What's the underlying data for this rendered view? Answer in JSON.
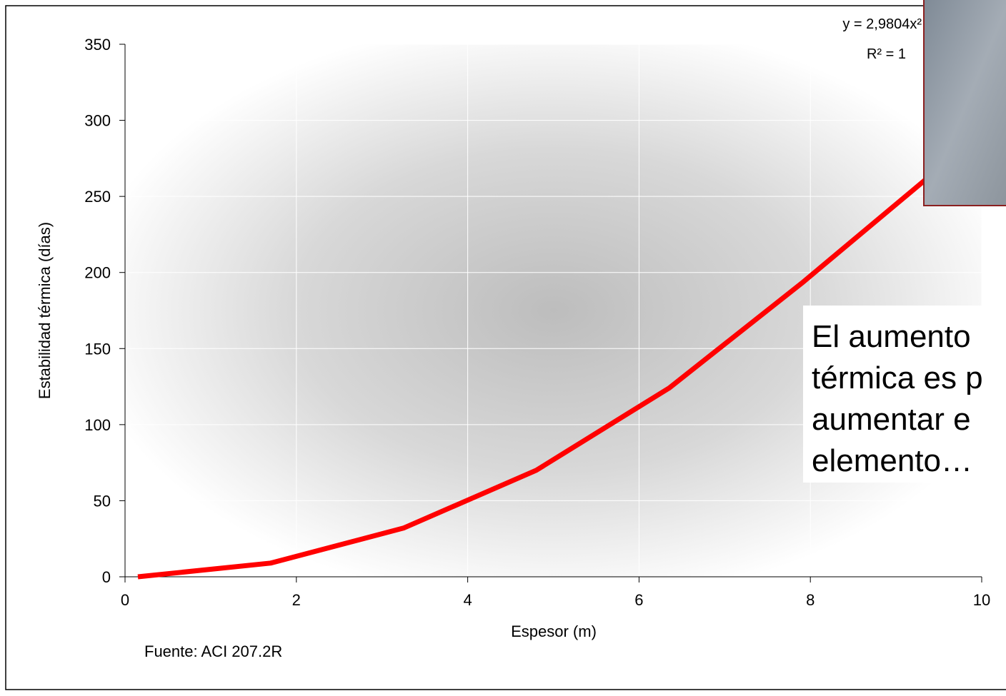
{
  "chart_data": {
    "type": "line",
    "x_label": "Espesor (m)",
    "y_label": "Estabilidad térmica (días)",
    "x": [
      0.15,
      1.7,
      3.25,
      4.8,
      6.35,
      7.9,
      9.45
    ],
    "values": [
      0,
      9,
      32,
      70,
      124,
      193,
      266
    ],
    "color": "#ff0000",
    "xlim": [
      0,
      10
    ],
    "xticks": [
      0,
      2,
      4,
      6,
      8,
      10
    ],
    "ylim": [
      0,
      350
    ],
    "yticks": [
      0,
      50,
      100,
      150,
      200,
      250,
      300,
      350
    ],
    "grid": true,
    "equation": "y = 2,9804x²",
    "r_squared": "R² = 1",
    "source": "Fuente: ACI 207.2R",
    "note_lines": [
      "El aumento",
      "térmica es p",
      "aumentar e",
      "elemento…"
    ]
  }
}
